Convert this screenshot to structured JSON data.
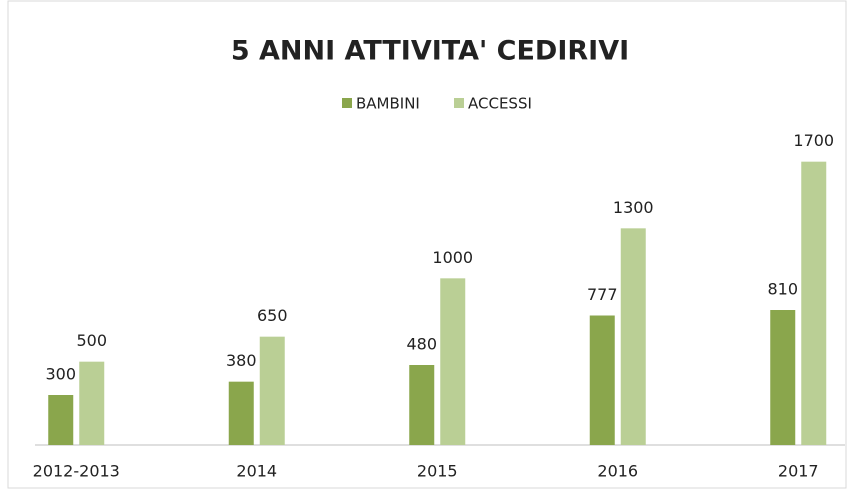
{
  "chart_data": {
    "type": "bar",
    "title": "5 ANNI ATTIVITA' CEDIRIVI",
    "categories": [
      "2012-2013",
      "2014",
      "2015",
      "2016",
      "2017"
    ],
    "series": [
      {
        "name": "BAMBINI",
        "color": "#8aa64c",
        "values": [
          300,
          380,
          480,
          777,
          810
        ]
      },
      {
        "name": "ACCESSI",
        "color": "#bacf95",
        "values": [
          500,
          650,
          1000,
          1300,
          1700
        ]
      }
    ],
    "ylim": [
      0,
      1800
    ],
    "legend": "top"
  }
}
